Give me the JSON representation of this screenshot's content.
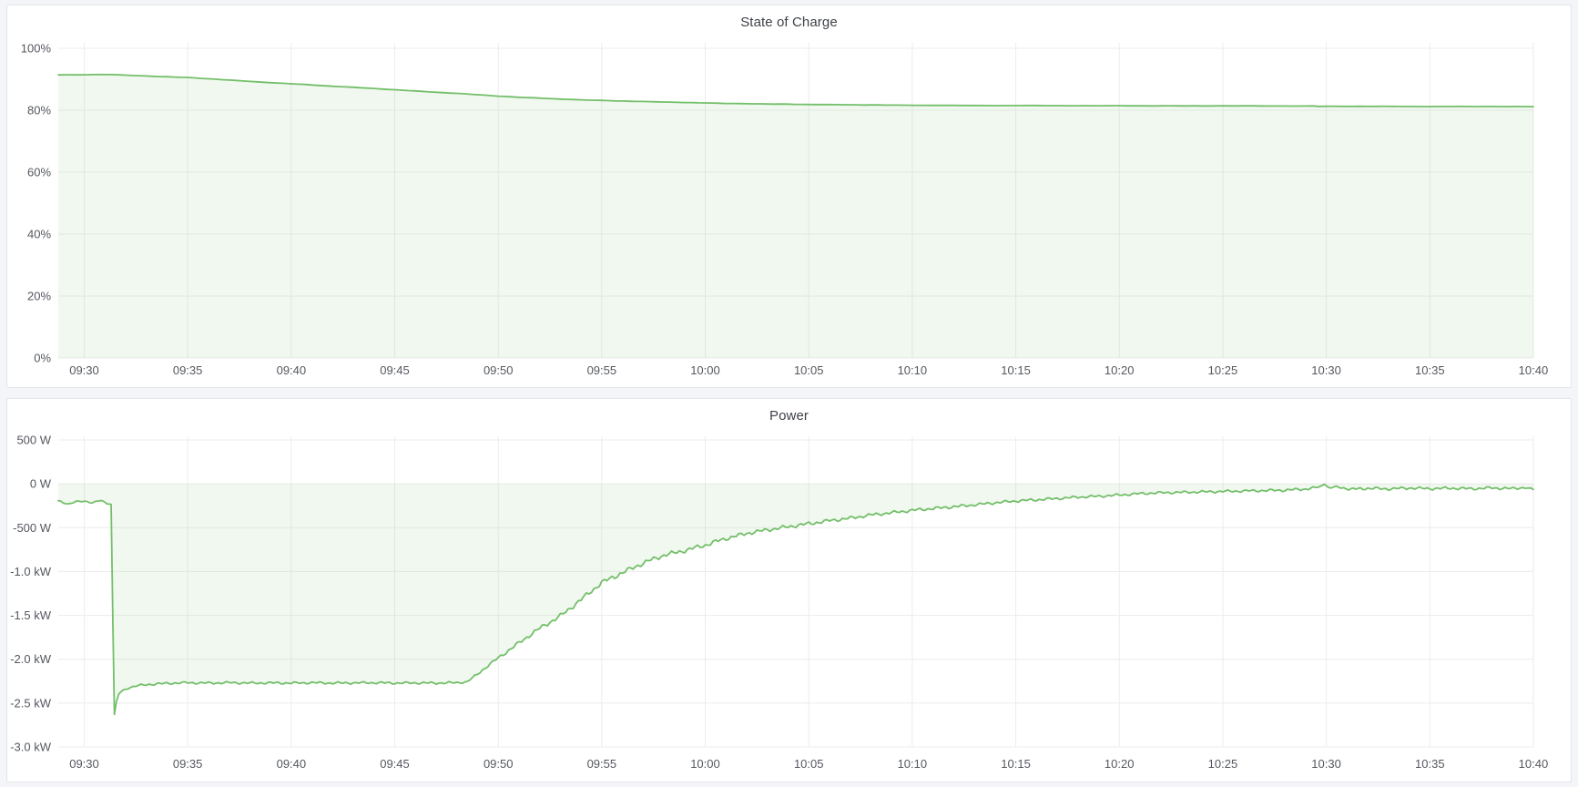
{
  "page": {
    "background_color": "#f4f5f9",
    "panel_background": "#ffffff",
    "panel_border_color": "#e2e5ea",
    "grid_color": "#ececec",
    "tick_label_color": "#54575e",
    "title_color": "#3e4248",
    "accent_green": "#73bf69"
  },
  "panels": [
    {
      "title": "State of Charge"
    },
    {
      "title": "Power"
    }
  ],
  "chart_data": [
    {
      "id": "state-of-charge",
      "type": "area",
      "title": "State of Charge",
      "xlabel": "",
      "ylabel": "",
      "legend": "none",
      "grid": "on",
      "x_range_minutes": [
        -1.25,
        70
      ],
      "x_ticks": [
        {
          "t": 0,
          "label": "09:30"
        },
        {
          "t": 5,
          "label": "09:35"
        },
        {
          "t": 10,
          "label": "09:40"
        },
        {
          "t": 15,
          "label": "09:45"
        },
        {
          "t": 20,
          "label": "09:50"
        },
        {
          "t": 25,
          "label": "09:55"
        },
        {
          "t": 30,
          "label": "10:00"
        },
        {
          "t": 35,
          "label": "10:05"
        },
        {
          "t": 40,
          "label": "10:10"
        },
        {
          "t": 45,
          "label": "10:15"
        },
        {
          "t": 50,
          "label": "10:20"
        },
        {
          "t": 55,
          "label": "10:25"
        },
        {
          "t": 60,
          "label": "10:30"
        },
        {
          "t": 65,
          "label": "10:35"
        },
        {
          "t": 70,
          "label": "10:40"
        }
      ],
      "ylim": [
        0,
        100
      ],
      "y_ticks": [
        {
          "v": 100,
          "label": "100%"
        },
        {
          "v": 80,
          "label": "80%"
        },
        {
          "v": 60,
          "label": "60%"
        },
        {
          "v": 40,
          "label": "40%"
        },
        {
          "v": 20,
          "label": "20%"
        },
        {
          "v": 0,
          "label": "0%"
        }
      ],
      "unit": "percent",
      "baseline": 0,
      "line_color": "#73bf69",
      "fill_color": "rgba(115,191,105,0.10)",
      "step_minutes": 0.4,
      "default_noise": 0.03,
      "points": [
        [
          -1.25,
          91.4
        ],
        [
          0,
          91.45
        ],
        [
          0.8,
          91.55
        ],
        [
          1.4,
          91.5
        ],
        [
          2,
          91.3
        ],
        [
          3,
          91.05
        ],
        [
          4,
          90.8
        ],
        [
          5,
          90.55
        ],
        [
          6,
          90.15
        ],
        [
          7,
          89.75
        ],
        [
          8,
          89.3
        ],
        [
          9,
          88.9
        ],
        [
          10,
          88.55
        ],
        [
          11,
          88.15
        ],
        [
          12,
          87.75
        ],
        [
          13,
          87.4
        ],
        [
          14,
          87.0
        ],
        [
          15,
          86.6
        ],
        [
          16,
          86.2
        ],
        [
          17,
          85.8
        ],
        [
          18,
          85.45
        ],
        [
          19,
          85.0
        ],
        [
          20,
          84.55
        ],
        [
          21,
          84.2
        ],
        [
          22,
          83.9
        ],
        [
          23,
          83.6
        ],
        [
          24,
          83.35
        ],
        [
          25,
          83.15
        ],
        [
          26,
          82.95
        ],
        [
          27,
          82.8
        ],
        [
          28,
          82.65
        ],
        [
          29,
          82.5
        ],
        [
          30,
          82.35
        ],
        [
          31,
          82.2
        ],
        [
          32,
          82.1
        ],
        [
          33,
          82.0
        ],
        [
          34,
          81.95
        ],
        [
          35,
          81.85
        ],
        [
          36,
          81.8
        ],
        [
          37,
          81.75
        ],
        [
          38,
          81.7
        ],
        [
          39,
          81.65
        ],
        [
          40,
          81.6
        ],
        [
          42,
          81.55
        ],
        [
          44,
          81.5
        ],
        [
          46,
          81.5
        ],
        [
          48,
          81.45
        ],
        [
          50,
          81.45
        ],
        [
          52,
          81.4
        ],
        [
          54,
          81.4
        ],
        [
          56,
          81.4
        ],
        [
          58,
          81.35
        ],
        [
          59.4,
          81.35
        ],
        [
          59.6,
          81.25
        ],
        [
          62,
          81.25
        ],
        [
          65,
          81.2
        ],
        [
          68,
          81.2
        ],
        [
          70,
          81.15
        ]
      ]
    },
    {
      "id": "power",
      "type": "area",
      "title": "Power",
      "xlabel": "",
      "ylabel": "",
      "legend": "none",
      "grid": "on",
      "x_range_minutes": [
        -1.25,
        70
      ],
      "x_ticks": [
        {
          "t": 0,
          "label": "09:30"
        },
        {
          "t": 5,
          "label": "09:35"
        },
        {
          "t": 10,
          "label": "09:40"
        },
        {
          "t": 15,
          "label": "09:45"
        },
        {
          "t": 20,
          "label": "09:50"
        },
        {
          "t": 25,
          "label": "09:55"
        },
        {
          "t": 30,
          "label": "10:00"
        },
        {
          "t": 35,
          "label": "10:05"
        },
        {
          "t": 40,
          "label": "10:10"
        },
        {
          "t": 45,
          "label": "10:15"
        },
        {
          "t": 50,
          "label": "10:20"
        },
        {
          "t": 55,
          "label": "10:25"
        },
        {
          "t": 60,
          "label": "10:30"
        },
        {
          "t": 65,
          "label": "10:35"
        },
        {
          "t": 70,
          "label": "10:40"
        }
      ],
      "ylim": [
        -3000,
        500
      ],
      "y_ticks": [
        {
          "v": 500,
          "label": "500 W"
        },
        {
          "v": 0,
          "label": "0 W"
        },
        {
          "v": -500,
          "label": "-500 W"
        },
        {
          "v": -1000,
          "label": "-1.0 kW"
        },
        {
          "v": -1500,
          "label": "-1.5 kW"
        },
        {
          "v": -2000,
          "label": "-2.0 kW"
        },
        {
          "v": -2500,
          "label": "-2.5 kW"
        },
        {
          "v": -3000,
          "label": "-3.0 kW"
        }
      ],
      "unit": "watt",
      "baseline": 0,
      "line_color": "#73bf69",
      "fill_color": "rgba(115,191,105,0.10)",
      "step_minutes": 0.12,
      "default_noise": 0,
      "points": [
        [
          -1.25,
          -195,
          10
        ],
        [
          -0.8,
          -230,
          8
        ],
        [
          -0.4,
          -205,
          10
        ],
        [
          0,
          -200,
          10
        ],
        [
          0.4,
          -212,
          10
        ],
        [
          0.8,
          -190,
          8
        ],
        [
          1.1,
          -225,
          6
        ],
        [
          1.3,
          -235,
          2
        ],
        [
          1.38,
          -1500,
          0
        ],
        [
          1.46,
          -2630,
          0
        ],
        [
          1.56,
          -2480,
          0
        ],
        [
          1.68,
          -2395,
          4
        ],
        [
          1.8,
          -2365,
          8
        ],
        [
          2.1,
          -2330,
          12
        ],
        [
          2.5,
          -2305,
          14
        ],
        [
          3,
          -2290,
          15
        ],
        [
          4,
          -2275,
          15
        ],
        [
          5,
          -2268,
          15
        ],
        [
          6,
          -2272,
          15
        ],
        [
          7,
          -2268,
          15
        ],
        [
          8,
          -2272,
          15
        ],
        [
          9,
          -2270,
          15
        ],
        [
          10,
          -2272,
          15
        ],
        [
          11,
          -2268,
          15
        ],
        [
          12,
          -2272,
          15
        ],
        [
          13,
          -2270,
          15
        ],
        [
          14,
          -2268,
          15
        ],
        [
          15,
          -2272,
          15
        ],
        [
          16,
          -2270,
          15
        ],
        [
          17,
          -2272,
          15
        ],
        [
          18,
          -2268,
          14
        ],
        [
          18.5,
          -2258,
          12
        ],
        [
          19,
          -2170,
          14
        ],
        [
          19.5,
          -2075,
          16
        ],
        [
          20,
          -1985,
          20
        ],
        [
          20.5,
          -1900,
          22
        ],
        [
          21,
          -1815,
          24
        ],
        [
          21.5,
          -1730,
          26
        ],
        [
          22,
          -1648,
          28
        ],
        [
          22.5,
          -1578,
          28
        ],
        [
          23,
          -1508,
          30
        ],
        [
          23.5,
          -1415,
          30
        ],
        [
          24,
          -1322,
          32
        ],
        [
          24.5,
          -1222,
          32
        ],
        [
          25,
          -1128,
          32
        ],
        [
          25.5,
          -1070,
          32
        ],
        [
          26,
          -1015,
          32
        ],
        [
          26.5,
          -958,
          30
        ],
        [
          27,
          -905,
          30
        ],
        [
          27.5,
          -858,
          30
        ],
        [
          28,
          -815,
          28
        ],
        [
          28.5,
          -788,
          28
        ],
        [
          29,
          -762,
          28
        ],
        [
          29.5,
          -730,
          28
        ],
        [
          30,
          -700,
          28
        ],
        [
          30.5,
          -660,
          28
        ],
        [
          31,
          -625,
          26
        ],
        [
          31.5,
          -595,
          26
        ],
        [
          32,
          -565,
          26
        ],
        [
          32.5,
          -545,
          24
        ],
        [
          33,
          -525,
          24
        ],
        [
          33.5,
          -508,
          24
        ],
        [
          34,
          -490,
          24
        ],
        [
          34.5,
          -472,
          24
        ],
        [
          35,
          -455,
          24
        ],
        [
          35.5,
          -438,
          24
        ],
        [
          36,
          -420,
          22
        ],
        [
          36.5,
          -406,
          22
        ],
        [
          37,
          -392,
          22
        ],
        [
          37.5,
          -373,
          22
        ],
        [
          38,
          -355,
          22
        ],
        [
          38.5,
          -342,
          20
        ],
        [
          39,
          -330,
          20
        ],
        [
          39.5,
          -316,
          20
        ],
        [
          40,
          -302,
          20
        ],
        [
          41,
          -282,
          20
        ],
        [
          42,
          -262,
          20
        ],
        [
          43,
          -240,
          18
        ],
        [
          44,
          -216,
          18
        ],
        [
          45,
          -196,
          18
        ],
        [
          46,
          -182,
          18
        ],
        [
          47,
          -168,
          18
        ],
        [
          48,
          -152,
          16
        ],
        [
          49,
          -142,
          16
        ],
        [
          50,
          -128,
          16
        ],
        [
          51,
          -112,
          16
        ],
        [
          52,
          -102,
          16
        ],
        [
          53,
          -97,
          16
        ],
        [
          54,
          -92,
          16
        ],
        [
          55,
          -87,
          16
        ],
        [
          56,
          -82,
          16
        ],
        [
          57,
          -77,
          16
        ],
        [
          58,
          -72,
          18
        ],
        [
          59,
          -60,
          18
        ],
        [
          59.7,
          -35,
          12
        ],
        [
          59.9,
          0,
          4
        ],
        [
          60.1,
          -45,
          12
        ],
        [
          60.6,
          -38,
          16
        ],
        [
          61.2,
          -62,
          18
        ],
        [
          62,
          -52,
          18
        ],
        [
          63,
          -58,
          18
        ],
        [
          64,
          -48,
          18
        ],
        [
          65,
          -55,
          18
        ],
        [
          66,
          -50,
          18
        ],
        [
          67,
          -56,
          18
        ],
        [
          68,
          -47,
          18
        ],
        [
          69,
          -55,
          18
        ],
        [
          69.6,
          -42,
          14
        ],
        [
          70,
          -65,
          8
        ]
      ]
    }
  ]
}
